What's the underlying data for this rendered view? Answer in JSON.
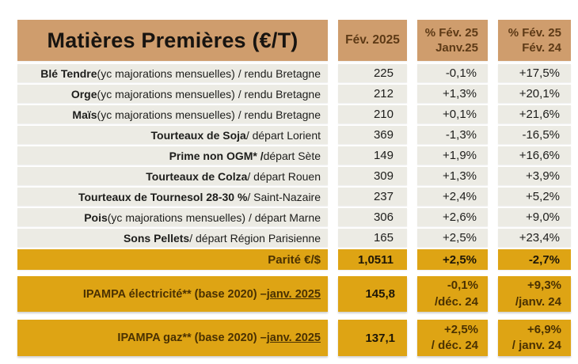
{
  "colors": {
    "header_bg": "#cf9d6d",
    "header_fg": "#5d3a16",
    "row_bg": "#ecebe4",
    "gold_bg": "#dea414",
    "gold_fg": "#4a3102"
  },
  "table": {
    "header": {
      "title": "Matières Premières (€/T)",
      "col_value": "Fév. 2025",
      "col_pct_month": [
        "% Fév. 25",
        "Janv.25"
      ],
      "col_pct_year": [
        "% Fév. 25",
        "Fév. 24"
      ]
    },
    "rows": [
      {
        "label_bold": "Blé Tendre",
        "label_rest": " (yc majorations mensuelles) / rendu Bretagne",
        "value": "225",
        "pct_month": "-0,1%",
        "pct_year": "+17,5%"
      },
      {
        "label_bold": "Orge",
        "label_rest": " (yc majorations mensuelles) / rendu Bretagne",
        "value": "212",
        "pct_month": "+1,3%",
        "pct_year": "+20,1%"
      },
      {
        "label_bold": "Maïs",
        "label_rest": " (yc majorations mensuelles) / rendu Bretagne",
        "value": "210",
        "pct_month": "+0,1%",
        "pct_year": "+21,6%"
      },
      {
        "label_bold": "Tourteaux de Soja",
        "label_rest": " / départ Lorient",
        "value": "369",
        "pct_month": "-1,3%",
        "pct_year": "-16,5%"
      },
      {
        "label_bold": "Prime non OGM* /",
        "label_rest": " départ Sète",
        "value": "149",
        "pct_month": "+1,9%",
        "pct_year": "+16,6%"
      },
      {
        "label_bold": "Tourteaux de Colza",
        "label_rest": " / départ Rouen",
        "value": "309",
        "pct_month": "+1,3%",
        "pct_year": "+3,9%"
      },
      {
        "label_bold": "Tourteaux de Tournesol 28-30 %",
        "label_rest": " / Saint-Nazaire",
        "value": "237",
        "pct_month": "+2,4%",
        "pct_year": "+5,2%"
      },
      {
        "label_bold": "Pois",
        "label_rest": " (yc majorations mensuelles) / départ Marne",
        "value": "306",
        "pct_month": "+2,6%",
        "pct_year": "+9,0%"
      },
      {
        "label_bold": "Sons Pellets",
        "label_rest": " / départ Région Parisienne",
        "value": "165",
        "pct_month": "+2,5%",
        "pct_year": "+23,4%"
      }
    ],
    "parity_row": {
      "label": "Parité €/$",
      "value": "1,0511",
      "pct_month": "+2,5%",
      "pct_year": "-2,7%"
    },
    "ipampa_rows": [
      {
        "label_main": "IPAMPA électricité** (base 2020) – ",
        "label_link": "janv. 2025",
        "value": "145,8",
        "pct_month": [
          "-0,1%",
          "/déc. 24"
        ],
        "pct_year": [
          "+9,3%",
          "/janv. 24"
        ]
      },
      {
        "label_main": "IPAMPA gaz** (base 2020) – ",
        "label_link": "janv. 2025",
        "value": "137,1",
        "pct_month": [
          "+2,5%",
          "/ déc. 24"
        ],
        "pct_year": [
          "+6,9%",
          "/ janv. 24"
        ]
      }
    ]
  }
}
